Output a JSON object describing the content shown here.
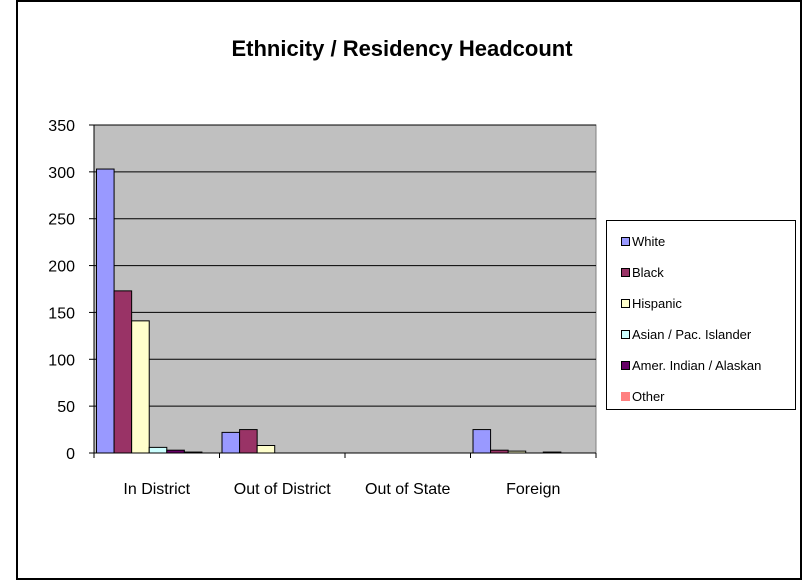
{
  "chart_data": {
    "type": "bar",
    "title": "Ethnicity / Residency Headcount",
    "categories": [
      "In District",
      "Out of District",
      "Out of State",
      "Foreign"
    ],
    "series": [
      {
        "name": "White",
        "color": "#9999ff",
        "values": [
          303,
          22,
          0,
          25
        ]
      },
      {
        "name": "Black",
        "color": "#993366",
        "values": [
          173,
          25,
          0,
          3
        ]
      },
      {
        "name": "Hispanic",
        "color": "#ffffcc",
        "values": [
          141,
          8,
          0,
          2
        ]
      },
      {
        "name": "Asian / Pac. Islander",
        "color": "#ccffff",
        "values": [
          6,
          0,
          0,
          0
        ]
      },
      {
        "name": "Amer. Indian / Alaskan",
        "color": "#660066",
        "values": [
          3,
          0,
          0,
          1
        ]
      },
      {
        "name": "Other",
        "color": "#ff8080",
        "values": [
          1,
          0,
          0,
          0
        ]
      }
    ],
    "ylim": [
      0,
      350
    ],
    "yticks": [
      0,
      50,
      100,
      150,
      200,
      250,
      300,
      350
    ],
    "grid": true,
    "legend": "right",
    "plot_background": "#c0c0c0"
  }
}
